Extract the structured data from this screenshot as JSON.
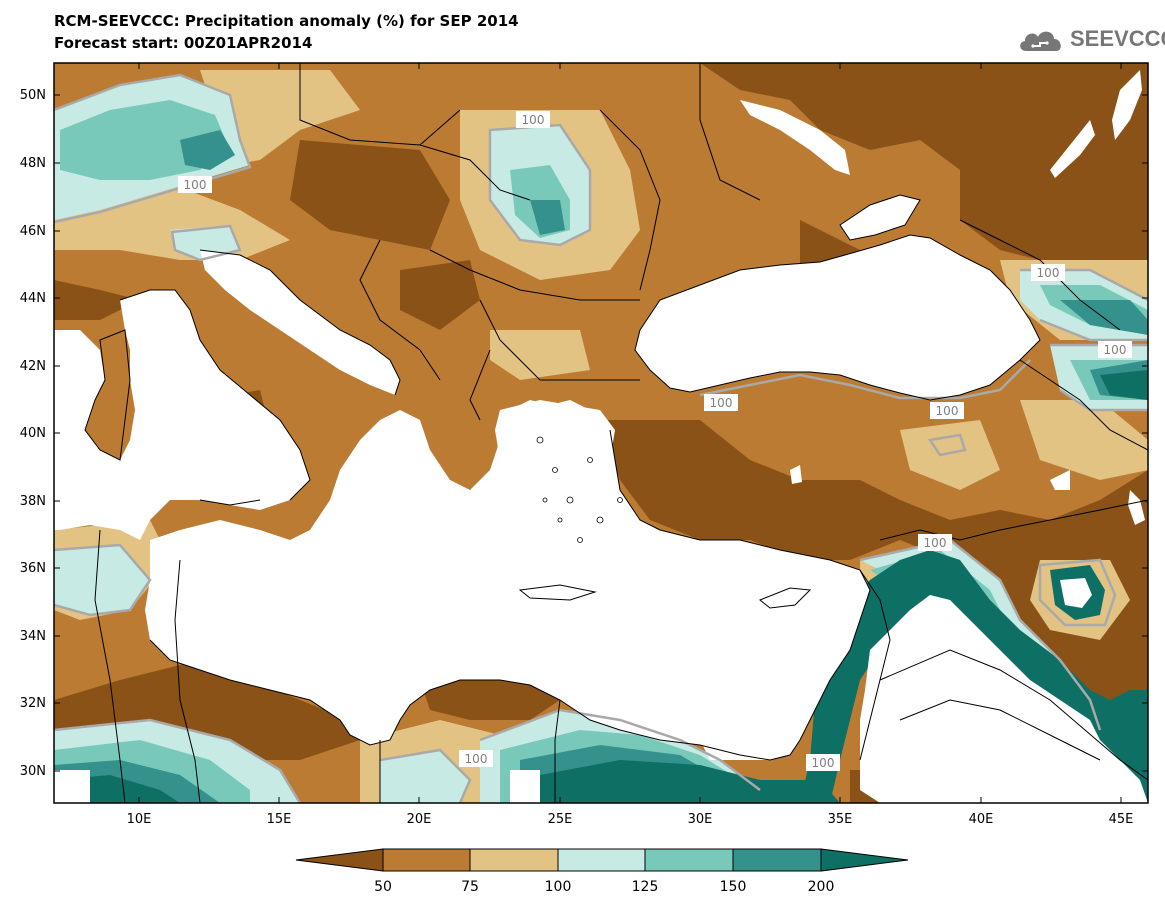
{
  "header": {
    "title_line1": "RCM-SEEVCCC: Precipitation anomaly (%) for SEP 2014",
    "title_line2": "Forecast start: 00Z01APR2014"
  },
  "logo": {
    "text": "SEEVCCC",
    "icon": "cloud-icon"
  },
  "map": {
    "lat_labels": [
      "50N",
      "48N",
      "46N",
      "44N",
      "42N",
      "40N",
      "38N",
      "36N",
      "34N",
      "32N",
      "30N"
    ],
    "lon_labels": [
      "10E",
      "15E",
      "20E",
      "25E",
      "30E",
      "35E",
      "40E",
      "45E"
    ],
    "contour_labels": [
      "100",
      "100",
      "100",
      "100",
      "100",
      "100",
      "100",
      "100",
      "100",
      "100"
    ]
  },
  "colorbar": {
    "tick_labels": [
      "50",
      "75",
      "100",
      "125",
      "150",
      "200"
    ],
    "colors": [
      "#8a5216",
      "#bb7b33",
      "#e3c384",
      "#c7ebe4",
      "#79c9bb",
      "#34918b",
      "#0e6f65"
    ]
  },
  "colors": {
    "very_dry": "#8a5216",
    "dry": "#bb7b33",
    "slightly_dry": "#e3c384",
    "slightly_wet": "#c7ebe4",
    "wet": "#79c9bb",
    "very_wet": "#34918b",
    "extreme_wet": "#0e6f65",
    "contour_100": "#a9a9a9"
  }
}
